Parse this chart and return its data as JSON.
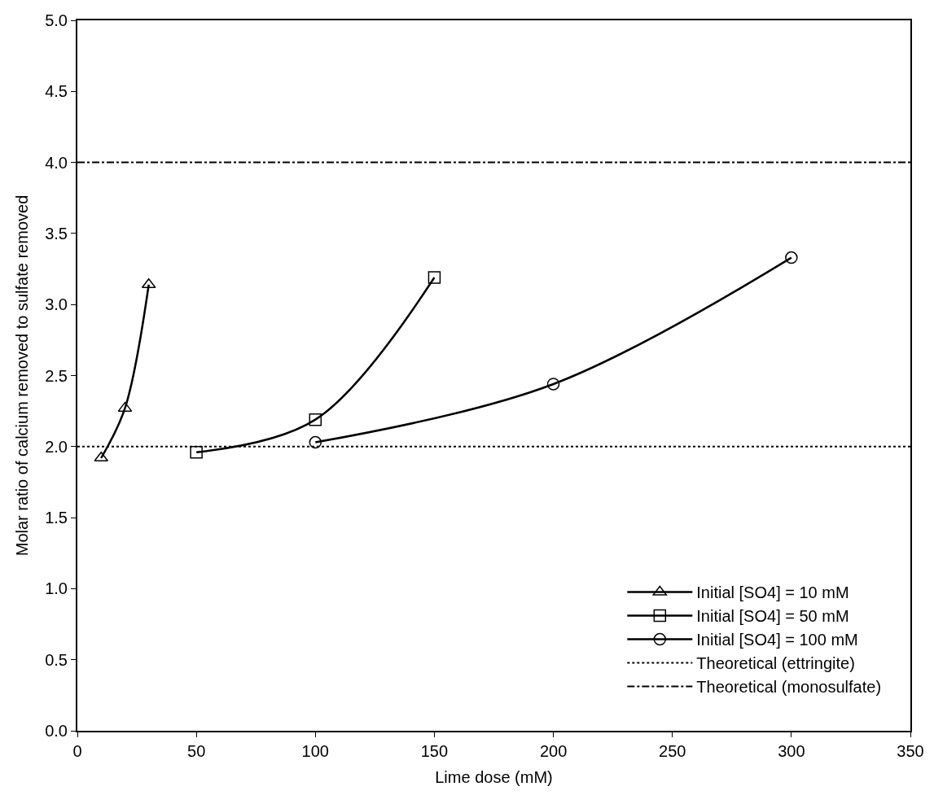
{
  "chart_data": {
    "type": "line",
    "xlabel": "Lime dose (mM)",
    "ylabel": "Molar ratio of calcium removed to sulfate removed",
    "xlim": [
      0,
      350
    ],
    "xticks": [
      0,
      50,
      100,
      150,
      200,
      250,
      300,
      350
    ],
    "ylim": [
      0,
      5
    ],
    "yticks": [
      {
        "value": 0,
        "label": "0.0"
      },
      {
        "value": 0.5,
        "label": "0.5"
      },
      {
        "value": 1,
        "label": "1.0"
      },
      {
        "value": 1.5,
        "label": "1.5"
      },
      {
        "value": 2,
        "label": "2.0"
      },
      {
        "value": 2.5,
        "label": "2.5"
      },
      {
        "value": 3,
        "label": "3.0"
      },
      {
        "value": 3.5,
        "label": "3.5"
      },
      {
        "value": 4,
        "label": "4.0"
      },
      {
        "value": 4.5,
        "label": "4.5"
      },
      {
        "value": 5,
        "label": "5.0"
      }
    ],
    "legend": "bottom right",
    "line_style": "solid",
    "series": [
      {
        "name": "Initial [SO4] = 10 mM",
        "color": "#000000",
        "marker": "triangle",
        "x": [
          10,
          20,
          30
        ],
        "values": [
          1.92,
          2.27,
          3.14
        ]
      },
      {
        "name": "Initial [SO4] = 50 mM",
        "color": "#000000",
        "marker": "square",
        "x": [
          50,
          100,
          150
        ],
        "values": [
          1.96,
          2.19,
          3.19
        ]
      },
      {
        "name": "Initial [SO4] = 100 mM",
        "color": "#000000",
        "marker": "circle",
        "x": [
          100,
          200,
          300
        ],
        "values": [
          2.03,
          2.44,
          3.33
        ]
      }
    ],
    "ref_lines": [
      {
        "axis": "y",
        "value": 2,
        "label": "Theoretical (ettringite)",
        "color": "#000000",
        "line_style": "dotted"
      },
      {
        "axis": "y",
        "value": 4,
        "label": "Theoretical (monosulfate)",
        "color": "#000000",
        "line_style": "dashdot"
      }
    ]
  }
}
